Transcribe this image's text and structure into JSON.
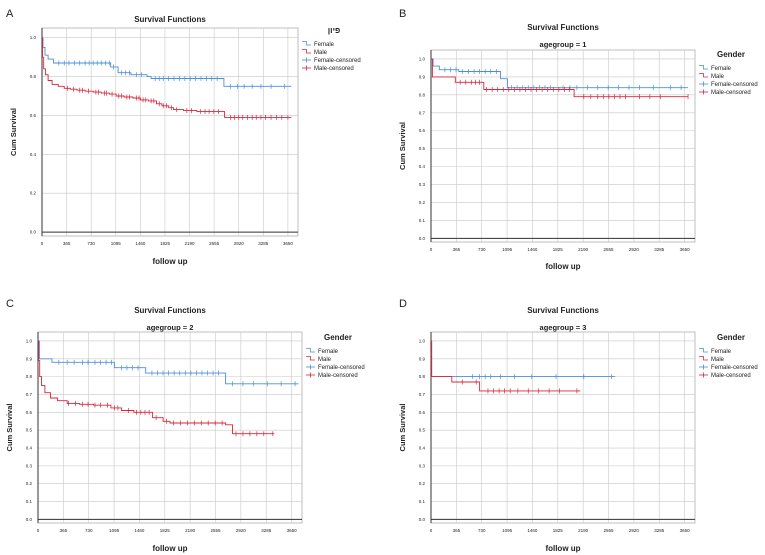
{
  "colors": {
    "female": "#4a90d9",
    "male": "#d7263d",
    "grid": "#c8c8c8",
    "axis": "#333333",
    "frame": "#b0b0b0",
    "text": "#222222"
  },
  "chart_data": [
    {
      "type": "line",
      "panel_label": "A",
      "title": "Survival Functions",
      "subtitle": "",
      "legend_title": "פיון",
      "legend_position": "top-right",
      "xlabel": "follow up",
      "ylabel": "Cum Survival",
      "xticks": [
        0,
        365,
        730,
        1095,
        1460,
        1825,
        2190,
        2555,
        2920,
        3285,
        3650
      ],
      "xtick_labels": [
        "0",
        "365",
        "730",
        "1095",
        "1460",
        "1825",
        "2190",
        "2555",
        "2920",
        "3285",
        "3650"
      ],
      "yticks": [
        0.0,
        0.2,
        0.4,
        0.6,
        0.8,
        1.0
      ],
      "ytick_labels": [
        "0.0",
        "0.2",
        "0.4",
        "0.6",
        "0.8",
        "1.0"
      ],
      "xlim": [
        0,
        3800
      ],
      "ylim": [
        -0.02,
        1.05
      ],
      "grid": true,
      "legend": [
        "Female",
        "Male",
        "Female-censored",
        "Male-censored"
      ],
      "series": [
        {
          "name": "Female",
          "steps": [
            [
              0,
              1.0
            ],
            [
              15,
              0.95
            ],
            [
              45,
              0.91
            ],
            [
              90,
              0.89
            ],
            [
              170,
              0.87
            ],
            [
              1020,
              0.85
            ],
            [
              1130,
              0.82
            ],
            [
              1320,
              0.81
            ],
            [
              1560,
              0.8
            ],
            [
              1620,
              0.79
            ],
            [
              2700,
              0.75
            ],
            [
              3700,
              0.75
            ]
          ],
          "censored": [
            250,
            330,
            400,
            480,
            560,
            640,
            700,
            760,
            820,
            880,
            940,
            1000,
            1060,
            1180,
            1240,
            1300,
            1400,
            1480,
            1680,
            1740,
            1800,
            1880,
            1960,
            2040,
            2120,
            2200,
            2280,
            2360,
            2440,
            2520,
            2600,
            2800,
            2900,
            3000,
            3120,
            3250,
            3400,
            3600
          ]
        },
        {
          "name": "Male",
          "steps": [
            [
              0,
              1.0
            ],
            [
              8,
              0.9
            ],
            [
              25,
              0.84
            ],
            [
              50,
              0.81
            ],
            [
              90,
              0.78
            ],
            [
              150,
              0.76
            ],
            [
              240,
              0.75
            ],
            [
              330,
              0.74
            ],
            [
              420,
              0.735
            ],
            [
              520,
              0.73
            ],
            [
              640,
              0.725
            ],
            [
              760,
              0.72
            ],
            [
              880,
              0.715
            ],
            [
              1000,
              0.71
            ],
            [
              1100,
              0.7
            ],
            [
              1220,
              0.695
            ],
            [
              1350,
              0.69
            ],
            [
              1460,
              0.68
            ],
            [
              1580,
              0.675
            ],
            [
              1700,
              0.66
            ],
            [
              1780,
              0.65
            ],
            [
              1880,
              0.64
            ],
            [
              1950,
              0.63
            ],
            [
              2100,
              0.625
            ],
            [
              2300,
              0.62
            ],
            [
              2710,
              0.59
            ],
            [
              3700,
              0.59
            ]
          ],
          "censored": [
            380,
            470,
            560,
            600,
            690,
            800,
            840,
            930,
            960,
            1040,
            1140,
            1180,
            1260,
            1300,
            1400,
            1440,
            1500,
            1540,
            1620,
            1660,
            1740,
            1800,
            1850,
            1920,
            2000,
            2150,
            2220,
            2350,
            2420,
            2480,
            2550,
            2620,
            2800,
            2860,
            2920,
            2980,
            3050,
            3120,
            3180,
            3250,
            3320,
            3400,
            3480,
            3560,
            3650
          ]
        }
      ]
    },
    {
      "type": "line",
      "panel_label": "B",
      "title": "Survival Functions",
      "subtitle": "agegroup = 1",
      "legend_title": "Gender",
      "legend_position": "top-right",
      "xlabel": "follow up",
      "ylabel": "Cum Survival",
      "xticks": [
        0,
        365,
        730,
        1095,
        1460,
        1825,
        2190,
        2555,
        2920,
        3285,
        3650
      ],
      "xtick_labels": [
        "0",
        "365",
        "730",
        "1095",
        "1460",
        "1825",
        "2190",
        "2555",
        "2920",
        "3285",
        "3650"
      ],
      "yticks": [
        0.0,
        0.1,
        0.2,
        0.3,
        0.4,
        0.5,
        0.6,
        0.7,
        0.8,
        0.9,
        1.0
      ],
      "ytick_labels": [
        "0.0",
        "0.1",
        "0.2",
        "0.3",
        "0.4",
        "0.5",
        "0.6",
        "0.7",
        "0.8",
        "0.9",
        "1.0"
      ],
      "xlim": [
        0,
        3800
      ],
      "ylim": [
        -0.02,
        1.05
      ],
      "grid": true,
      "legend": [
        "Female",
        "Male",
        "Female-censored",
        "Male-censored"
      ],
      "series": [
        {
          "name": "Female",
          "steps": [
            [
              0,
              1.0
            ],
            [
              30,
              0.96
            ],
            [
              120,
              0.94
            ],
            [
              400,
              0.93
            ],
            [
              1000,
              0.89
            ],
            [
              1100,
              0.84
            ],
            [
              3700,
              0.84
            ]
          ],
          "censored": [
            200,
            280,
            360,
            450,
            540,
            620,
            700,
            780,
            860,
            940,
            1160,
            1240,
            1320,
            1400,
            1480,
            1560,
            1640,
            1720,
            1900,
            2000,
            2100,
            2250,
            2400,
            2550,
            2700,
            2850,
            3000,
            3200,
            3450,
            3600
          ]
        },
        {
          "name": "Male",
          "steps": [
            [
              0,
              1.0
            ],
            [
              20,
              0.9
            ],
            [
              350,
              0.87
            ],
            [
              760,
              0.83
            ],
            [
              1500,
              0.83
            ],
            [
              2060,
              0.79
            ],
            [
              3700,
              0.79
            ]
          ],
          "censored": [
            420,
            500,
            580,
            640,
            700,
            800,
            880,
            960,
            1040,
            1120,
            1200,
            1280,
            1360,
            1440,
            1520,
            1600,
            1680,
            1760,
            1840,
            1920,
            1990,
            2200,
            2300,
            2400,
            2480,
            2560,
            2640,
            2720,
            2800,
            3000,
            3150,
            3300,
            3700
          ]
        }
      ]
    },
    {
      "type": "line",
      "panel_label": "C",
      "title": "Survival Functions",
      "subtitle": "agegroup = 2",
      "legend_title": "Gender",
      "legend_position": "top-right",
      "xlabel": "follow up",
      "ylabel": "Cum Survival",
      "xticks": [
        0,
        365,
        730,
        1095,
        1460,
        1825,
        2190,
        2555,
        2920,
        3285,
        3650
      ],
      "xtick_labels": [
        "0",
        "365",
        "730",
        "1095",
        "1460",
        "1825",
        "2190",
        "2555",
        "2920",
        "3285",
        "3650"
      ],
      "yticks": [
        0.0,
        0.1,
        0.2,
        0.3,
        0.4,
        0.5,
        0.6,
        0.7,
        0.8,
        0.9,
        1.0
      ],
      "ytick_labels": [
        "0.0",
        "0.1",
        "0.2",
        "0.3",
        "0.4",
        "0.5",
        "0.6",
        "0.7",
        "0.8",
        "0.9",
        "1.0"
      ],
      "xlim": [
        0,
        3800
      ],
      "ylim": [
        -0.02,
        1.05
      ],
      "grid": true,
      "legend": [
        "Female",
        "Male",
        "Female-censored",
        "Male-censored"
      ],
      "series": [
        {
          "name": "Female",
          "steps": [
            [
              0,
              1.0
            ],
            [
              20,
              0.9
            ],
            [
              200,
              0.88
            ],
            [
              1100,
              0.85
            ],
            [
              1550,
              0.82
            ],
            [
              2700,
              0.76
            ],
            [
              3750,
              0.76
            ]
          ],
          "censored": [
            300,
            420,
            520,
            640,
            720,
            820,
            900,
            980,
            1060,
            1200,
            1280,
            1360,
            1440,
            1640,
            1720,
            1800,
            1880,
            1960,
            2040,
            2120,
            2200,
            2280,
            2360,
            2440,
            2520,
            2600,
            2800,
            2950,
            3100,
            3300,
            3500,
            3700
          ]
        },
        {
          "name": "Male",
          "steps": [
            [
              0,
              1.0
            ],
            [
              8,
              0.89
            ],
            [
              25,
              0.8
            ],
            [
              50,
              0.75
            ],
            [
              100,
              0.71
            ],
            [
              180,
              0.68
            ],
            [
              280,
              0.665
            ],
            [
              420,
              0.65
            ],
            [
              600,
              0.645
            ],
            [
              800,
              0.64
            ],
            [
              1050,
              0.625
            ],
            [
              1200,
              0.61
            ],
            [
              1380,
              0.6
            ],
            [
              1650,
              0.57
            ],
            [
              1800,
              0.55
            ],
            [
              1900,
              0.54
            ],
            [
              2700,
              0.53
            ],
            [
              2800,
              0.48
            ],
            [
              3400,
              0.48
            ]
          ],
          "censored": [
            440,
            540,
            640,
            720,
            820,
            900,
            1000,
            1100,
            1150,
            1300,
            1420,
            1480,
            1540,
            1600,
            1700,
            1850,
            1950,
            2050,
            2150,
            2250,
            2350,
            2450,
            2550,
            2650,
            2850,
            2950,
            3050,
            3150,
            3250,
            3380
          ]
        }
      ]
    },
    {
      "type": "line",
      "panel_label": "D",
      "title": "Survival Functions",
      "subtitle": "agegroup = 3",
      "legend_title": "Gender",
      "legend_position": "top-right",
      "xlabel": "follow up",
      "ylabel": "Cum Survival",
      "xticks": [
        0,
        365,
        730,
        1095,
        1460,
        1825,
        2190,
        2555,
        2920,
        3285,
        3650
      ],
      "xtick_labels": [
        "0",
        "365",
        "730",
        "1095",
        "1460",
        "1825",
        "2190",
        "2555",
        "2920",
        "3285",
        "3650"
      ],
      "yticks": [
        0.0,
        0.1,
        0.2,
        0.3,
        0.4,
        0.5,
        0.6,
        0.7,
        0.8,
        0.9,
        1.0
      ],
      "ytick_labels": [
        "0.0",
        "0.1",
        "0.2",
        "0.3",
        "0.4",
        "0.5",
        "0.6",
        "0.7",
        "0.8",
        "0.9",
        "1.0"
      ],
      "xlim": [
        0,
        3800
      ],
      "ylim": [
        -0.02,
        1.05
      ],
      "grid": true,
      "legend": [
        "Female",
        "Male",
        "Female-censored",
        "Male-censored"
      ],
      "series": [
        {
          "name": "Female",
          "steps": [
            [
              0,
              1.0
            ],
            [
              10,
              0.8
            ],
            [
              2650,
              0.8
            ]
          ],
          "censored": [
            600,
            700,
            780,
            860,
            1000,
            1200,
            1450,
            1800,
            2200,
            2600
          ]
        },
        {
          "name": "Male",
          "steps": [
            [
              0,
              1.0
            ],
            [
              8,
              0.8
            ],
            [
              300,
              0.77
            ],
            [
              700,
              0.72
            ],
            [
              2150,
              0.72
            ]
          ],
          "censored": [
            450,
            650,
            820,
            900,
            980,
            1060,
            1140,
            1250,
            1400,
            1550,
            1700,
            1850,
            2100
          ]
        }
      ]
    }
  ]
}
